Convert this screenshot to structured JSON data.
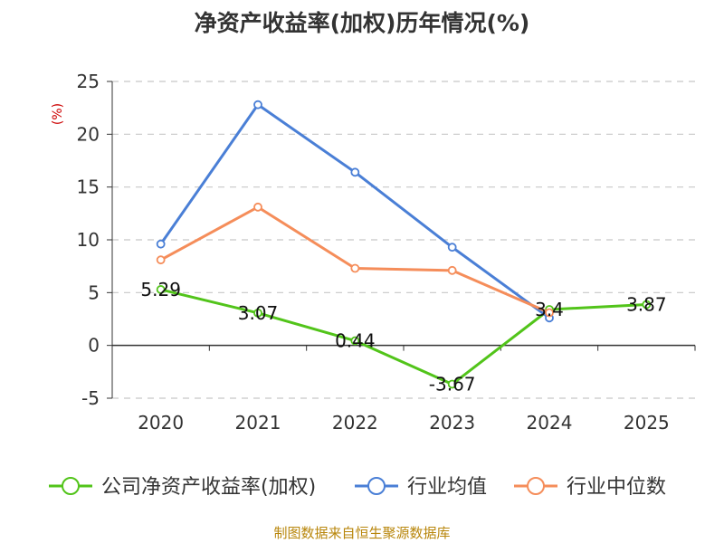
{
  "chart_data": {
    "type": "line",
    "title": "净资产收益率(加权)历年情况(%)",
    "ylabel": "(%)",
    "xlabel": "",
    "categories": [
      "2020",
      "2021",
      "2022",
      "2023",
      "2024",
      "2025"
    ],
    "ylim": [
      -5,
      25
    ],
    "yticks": [
      -5,
      0,
      5,
      10,
      15,
      20,
      25
    ],
    "grid": true,
    "legend_position": "bottom",
    "series": [
      {
        "name": "公司净资产收益率(加权)",
        "color": "#52c41a",
        "values": [
          5.29,
          3.07,
          0.44,
          -3.67,
          3.4,
          3.87
        ],
        "labels": [
          "5.29",
          "3.07",
          "0.44",
          "-3.67",
          "3.4",
          "3.87"
        ]
      },
      {
        "name": "行业均值",
        "color": "#4a7fd6",
        "values": [
          9.6,
          22.8,
          16.4,
          9.3,
          2.6,
          null
        ]
      },
      {
        "name": "行业中位数",
        "color": "#f58d5a",
        "values": [
          8.1,
          13.1,
          7.3,
          7.1,
          3.1,
          null
        ]
      }
    ],
    "source": "制图数据来自恒生聚源数据库"
  }
}
